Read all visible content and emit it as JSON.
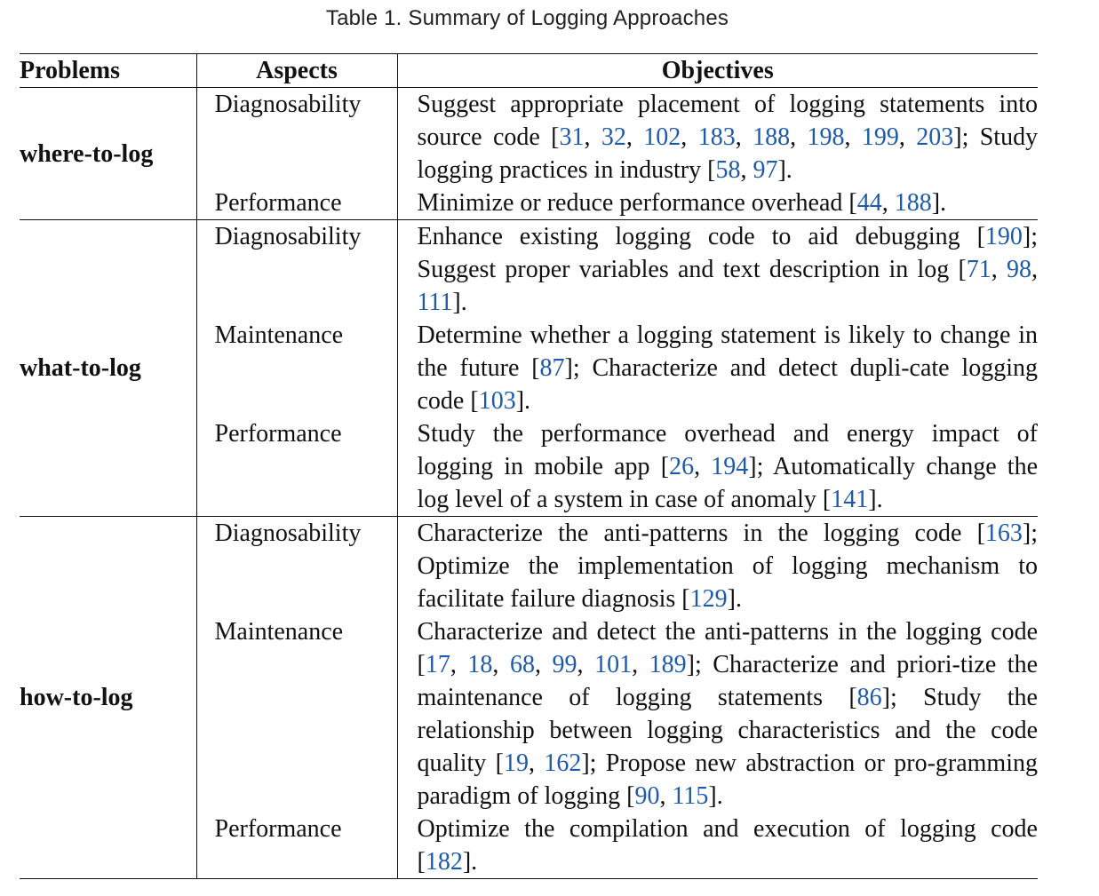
{
  "caption": "Table 1.  Summary of Logging Approaches",
  "headers": [
    "Problems",
    "Aspects",
    "Objectives"
  ],
  "groups": [
    {
      "problem": "where-to-log",
      "rows": [
        {
          "aspect": "Diagnosability",
          "objective": "Suggest appropriate placement of logging statements into source code [31, 32, 102, 183, 188, 198, 199, 203]; Study logging practices in industry [58, 97]."
        },
        {
          "aspect": "Performance",
          "objective": "Minimize or reduce performance overhead [44, 188]."
        }
      ]
    },
    {
      "problem": "what-to-log",
      "rows": [
        {
          "aspect": "Diagnosability",
          "objective": "Enhance existing logging code to aid debugging [190]; Suggest proper variables and text description in log [71, 98, 111]."
        },
        {
          "aspect": "Maintenance",
          "objective": "Determine whether a logging statement is likely to change in the future [87]; Characterize and detect dupli-cate logging code [103]."
        },
        {
          "aspect": "Performance",
          "objective": "Study the performance overhead and energy impact of logging in mobile app [26, 194]; Automatically change the log level of a system in case of anomaly [141]."
        }
      ]
    },
    {
      "problem": "how-to-log",
      "rows": [
        {
          "aspect": "Diagnosability",
          "objective": "Characterize the anti-patterns in the logging code [163]; Optimize the implementation of logging mechanism to facilitate failure diagnosis [129]."
        },
        {
          "aspect": "Maintenance",
          "objective": "Characterize and detect the anti-patterns in the logging code [17, 18, 68, 99, 101, 189]; Characterize and priori-tize the maintenance of logging statements [86]; Study the relationship between logging characteristics and the code quality [19, 162]; Propose new abstraction or pro-gramming paradigm of logging [90, 115]."
        },
        {
          "aspect": "Performance",
          "objective": "Optimize the compilation and execution of logging code [182]."
        }
      ]
    }
  ],
  "colors": {
    "reference_link": "#1f5aa8",
    "text": "#111111",
    "rule": "#111111"
  }
}
